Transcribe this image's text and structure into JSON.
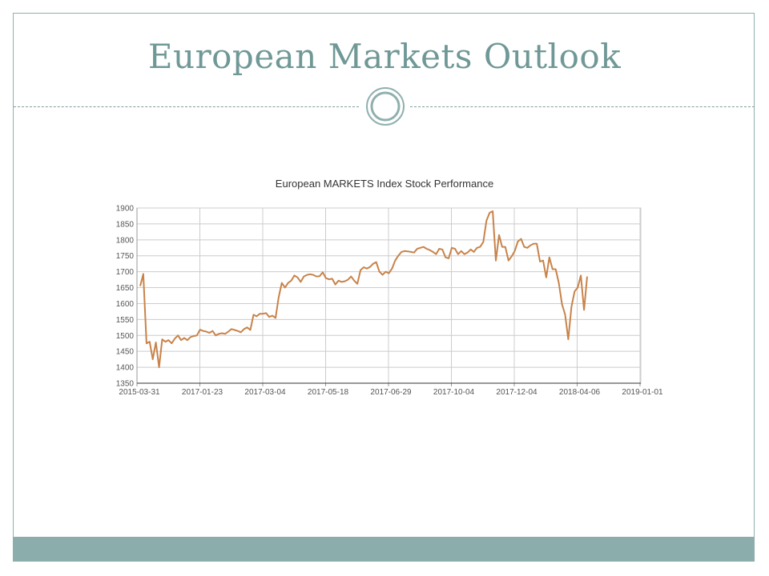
{
  "slide": {
    "title": "European Markets Outlook",
    "accent_color": "#8badab",
    "title_color": "#6f9896"
  },
  "chart_data": {
    "type": "line",
    "title": "European MARKETS Index Stock Performance",
    "xlabel": "",
    "ylabel": "",
    "ylim": [
      1350,
      1900
    ],
    "yticks": [
      1350,
      1400,
      1450,
      1500,
      1550,
      1600,
      1650,
      1700,
      1750,
      1800,
      1850,
      1900
    ],
    "xtick_labels": [
      "2015-03-31",
      "2017-01-23",
      "2017-03-04",
      "2017-05-18",
      "2017-06-29",
      "2017-10-04",
      "2017-12-04",
      "2018-04-06",
      "2019-01-01"
    ],
    "grid": true,
    "line_color": "#c8834a",
    "series": [
      {
        "values": [
          1655,
          1693,
          1475,
          1480,
          1425,
          1478,
          1400,
          1488,
          1480,
          1485,
          1475,
          1490,
          1500,
          1485,
          1492,
          1485,
          1495,
          1498,
          1500,
          1518,
          1514,
          1512,
          1508,
          1514,
          1500,
          1505,
          1507,
          1505,
          1512,
          1520,
          1517,
          1514,
          1510,
          1520,
          1525,
          1517,
          1565,
          1560,
          1568,
          1568,
          1570,
          1558,
          1562,
          1555,
          1620,
          1665,
          1650,
          1665,
          1672,
          1688,
          1682,
          1668,
          1685,
          1690,
          1692,
          1690,
          1685,
          1686,
          1698,
          1680,
          1676,
          1678,
          1660,
          1672,
          1668,
          1670,
          1675,
          1685,
          1672,
          1662,
          1705,
          1714,
          1710,
          1715,
          1725,
          1730,
          1700,
          1690,
          1700,
          1695,
          1710,
          1735,
          1750,
          1762,
          1765,
          1764,
          1762,
          1760,
          1772,
          1775,
          1778,
          1772,
          1768,
          1762,
          1755,
          1772,
          1770,
          1745,
          1742,
          1775,
          1772,
          1755,
          1765,
          1755,
          1760,
          1770,
          1762,
          1775,
          1778,
          1793,
          1860,
          1885,
          1890,
          1735,
          1815,
          1778,
          1778,
          1735,
          1748,
          1765,
          1795,
          1803,
          1778,
          1775,
          1783,
          1788,
          1788,
          1732,
          1735,
          1682,
          1745,
          1708,
          1708,
          1665,
          1598,
          1565,
          1488,
          1590,
          1638,
          1650,
          1688,
          1580,
          1685
        ]
      }
    ]
  }
}
